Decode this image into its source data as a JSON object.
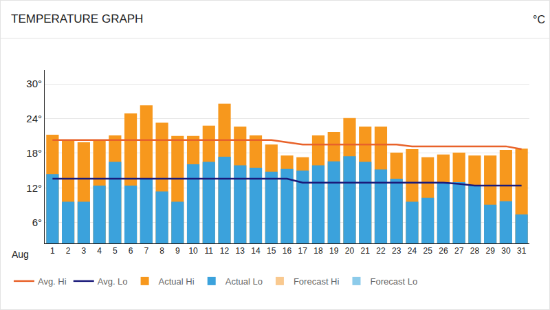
{
  "chart_data": {
    "type": "bar",
    "title": "TEMPERATURE GRAPH",
    "y_label": "°C",
    "x_label": "Aug",
    "categories": [
      "1",
      "2",
      "3",
      "4",
      "5",
      "6",
      "7",
      "8",
      "9",
      "10",
      "11",
      "12",
      "13",
      "14",
      "15",
      "16",
      "17",
      "18",
      "19",
      "20",
      "21",
      "22",
      "23",
      "24",
      "25",
      "26",
      "27",
      "28",
      "29",
      "30",
      "31"
    ],
    "series": [
      {
        "name": "Avg. Hi",
        "type": "line",
        "color": "#e8622a",
        "values": [
          20.3,
          20.3,
          20.3,
          20.3,
          20.3,
          20.3,
          20.3,
          20.3,
          20.3,
          20.3,
          20.3,
          20.3,
          20.3,
          20.3,
          20.3,
          19.9,
          19.5,
          19.5,
          19.5,
          19.5,
          19.5,
          19.5,
          19.5,
          19.2,
          19.2,
          19.2,
          19.2,
          19.2,
          19.2,
          19.2,
          18.7
        ]
      },
      {
        "name": "Avg. Lo",
        "type": "line",
        "color": "#1a1a7a",
        "values": [
          13.6,
          13.6,
          13.6,
          13.6,
          13.6,
          13.6,
          13.6,
          13.6,
          13.6,
          13.6,
          13.6,
          13.6,
          13.6,
          13.6,
          13.6,
          13.6,
          12.9,
          12.9,
          12.9,
          12.9,
          12.9,
          12.9,
          12.9,
          12.9,
          12.9,
          12.9,
          12.7,
          12.4,
          12.4,
          12.4,
          12.4
        ]
      },
      {
        "name": "Actual Hi",
        "type": "bar",
        "color": "#f7981d",
        "values": [
          21.2,
          20.3,
          19.9,
          20.3,
          21.1,
          24.9,
          26.3,
          23.3,
          21.0,
          21.0,
          22.8,
          26.6,
          22.6,
          21.1,
          19.5,
          17.6,
          17.3,
          21.1,
          21.7,
          24.1,
          22.6,
          22.6,
          18.1,
          18.7,
          17.3,
          17.8,
          18.1,
          17.6,
          17.6,
          18.6,
          18.8
        ]
      },
      {
        "name": "Actual Lo",
        "type": "bar",
        "color": "#3ba2dc",
        "values": [
          14.4,
          9.6,
          9.6,
          12.4,
          16.5,
          12.4,
          13.6,
          11.4,
          9.6,
          16.1,
          16.5,
          17.4,
          15.9,
          15.5,
          14.8,
          15.3,
          15.0,
          15.9,
          16.6,
          17.5,
          16.5,
          15.2,
          13.6,
          9.6,
          10.3,
          12.9,
          13.0,
          12.4,
          9.1,
          9.7,
          7.4
        ]
      },
      {
        "name": "Forecast Hi",
        "type": "bar",
        "color": "#f9c98f",
        "values": [
          null,
          null,
          null,
          null,
          null,
          null,
          null,
          null,
          null,
          null,
          null,
          null,
          null,
          null,
          null,
          null,
          null,
          null,
          null,
          null,
          null,
          null,
          null,
          null,
          null,
          null,
          null,
          null,
          null,
          null,
          null
        ]
      },
      {
        "name": "Forecast Lo",
        "type": "bar",
        "color": "#8ccbea",
        "values": [
          null,
          null,
          null,
          null,
          null,
          null,
          null,
          null,
          null,
          null,
          null,
          null,
          null,
          null,
          null,
          null,
          null,
          null,
          null,
          null,
          null,
          null,
          null,
          null,
          null,
          null,
          null,
          null,
          null,
          null,
          null
        ]
      }
    ],
    "ylim": [
      2.4,
      32.4
    ],
    "yticks": [
      {
        "value": 6,
        "label": "6°"
      },
      {
        "value": 12,
        "label": "12°"
      },
      {
        "value": 18,
        "label": "18°"
      },
      {
        "value": 24,
        "label": "24°"
      },
      {
        "value": 30,
        "label": "30°"
      }
    ],
    "grid": true,
    "legend": "bottom",
    "stacked": false
  }
}
